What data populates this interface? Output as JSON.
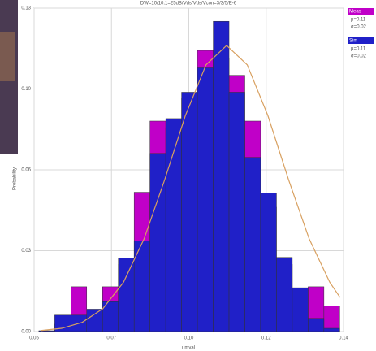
{
  "chart_data": {
    "type": "histogram",
    "title": "DW=10/10.1=25dB/Vds/Vds/Vcon=3/3/5/E-6",
    "y_label": "Probability",
    "x_label": "umval",
    "bins": [
      0.0514,
      0.056,
      0.0607,
      0.0653,
      0.0699,
      0.0745,
      0.0791,
      0.0837,
      0.0883,
      0.0929,
      0.0975,
      0.1021,
      0.1067,
      0.1113,
      0.1159,
      0.1205,
      0.1251,
      0.1297,
      0.1343,
      0.1389
    ],
    "series": [
      {
        "name": "Meas",
        "color": "#c000c8",
        "notes": [
          "μ=0.11",
          "σ=0.02"
        ],
        "values": [
          0.0003,
          0.003,
          0.018,
          0.0066,
          0.018,
          0.027,
          0.056,
          0.0846,
          0.082,
          0.094,
          0.113,
          0.11,
          0.103,
          0.0846,
          0.05,
          0.027,
          0.015,
          0.018,
          0.0103
        ]
      },
      {
        "name": "Sim",
        "color": "#2020c8",
        "notes": [
          "μ=0.11",
          "σ=0.02"
        ],
        "values": [
          0.0003,
          0.0066,
          0.0066,
          0.009,
          0.012,
          0.0295,
          0.0365,
          0.0716,
          0.0856,
          0.0962,
          0.106,
          0.1247,
          0.0962,
          0.07,
          0.0557,
          0.0298,
          0.0176,
          0.0053,
          0.0013
        ]
      }
    ],
    "curve": {
      "color": "#d8a060",
      "x": [
        0.052,
        0.058,
        0.064,
        0.07,
        0.076,
        0.082,
        0.088,
        0.094,
        0.1,
        0.106,
        0.112,
        0.118,
        0.124,
        0.13,
        0.136,
        0.139
      ],
      "values": [
        0.0004,
        0.0013,
        0.0037,
        0.0092,
        0.0198,
        0.0373,
        0.0611,
        0.0868,
        0.1072,
        0.115,
        0.1072,
        0.0868,
        0.0611,
        0.0373,
        0.0198,
        0.0137
      ]
    },
    "xlim": [
      0.05,
      0.14
    ],
    "xticks": [
      0.05,
      {
        "value": 0.0725,
        "label": "0.07"
      },
      {
        "value": 0.095,
        "label": "0.10"
      },
      {
        "value": 0.1175,
        "label": "0.12"
      },
      0.14
    ],
    "ylim": [
      0,
      0.13
    ],
    "yticks": [
      {
        "value": 0,
        "label": "0.00"
      },
      {
        "value": 0.0325,
        "label": "0.03"
      },
      {
        "value": 0.065,
        "label": "0.06"
      },
      {
        "value": 0.0975,
        "label": "0.10"
      },
      {
        "value": 0.13,
        "label": "0.13"
      }
    ],
    "grid": true
  }
}
